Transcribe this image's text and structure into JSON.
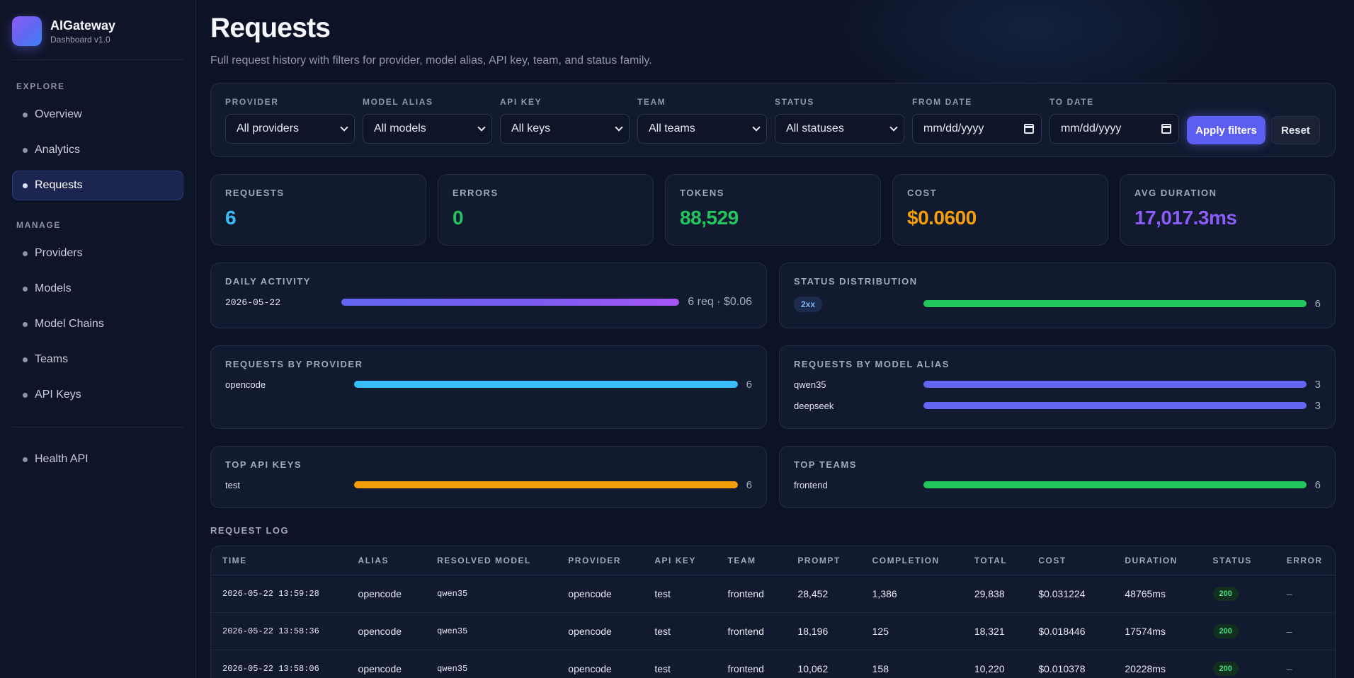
{
  "brand": {
    "name": "AIGateway",
    "subtitle": "Dashboard v1.0"
  },
  "sidebar": {
    "sections": [
      {
        "title": "EXPLORE",
        "items": [
          {
            "label": "Overview",
            "active": false
          },
          {
            "label": "Analytics",
            "active": false
          },
          {
            "label": "Requests",
            "active": true
          }
        ]
      },
      {
        "title": "MANAGE",
        "items": [
          {
            "label": "Providers",
            "active": false
          },
          {
            "label": "Models",
            "active": false
          },
          {
            "label": "Model Chains",
            "active": false
          },
          {
            "label": "Teams",
            "active": false
          },
          {
            "label": "API Keys",
            "active": false
          }
        ]
      }
    ],
    "footer_items": [
      {
        "label": "Health API"
      }
    ]
  },
  "header": {
    "title": "Requests",
    "description": "Full request history with filters for provider, model alias, API key, team, and status family."
  },
  "filters": {
    "fields": [
      {
        "label": "PROVIDER",
        "value": "All providers",
        "type": "select"
      },
      {
        "label": "MODEL ALIAS",
        "value": "All models",
        "type": "select"
      },
      {
        "label": "API KEY",
        "value": "All keys",
        "type": "select"
      },
      {
        "label": "TEAM",
        "value": "All teams",
        "type": "select"
      },
      {
        "label": "STATUS",
        "value": "All statuses",
        "type": "select"
      },
      {
        "label": "FROM DATE",
        "value": "mm/dd/yyyy",
        "type": "date"
      },
      {
        "label": "TO DATE",
        "value": "mm/dd/yyyy",
        "type": "date"
      }
    ],
    "apply_label": "Apply filters",
    "reset_label": "Reset"
  },
  "stats": [
    {
      "label": "REQUESTS",
      "value": "6",
      "color": "#38bdf8"
    },
    {
      "label": "ERRORS",
      "value": "0",
      "color": "#22c55e"
    },
    {
      "label": "TOKENS",
      "value": "88,529",
      "color": "#22c55e"
    },
    {
      "label": "COST",
      "value": "$0.0600",
      "color": "#f59e0b"
    },
    {
      "label": "AVG DURATION",
      "value": "17,017.3ms",
      "color": "#8b5cf6"
    }
  ],
  "panels": {
    "daily_activity": {
      "title": "DAILY ACTIVITY",
      "rows": [
        {
          "label": "2026-05-22",
          "value": "6 req · $0.06",
          "fraction": 1.0
        }
      ]
    },
    "status_distribution": {
      "title": "STATUS DISTRIBUTION",
      "rows": [
        {
          "label": "2xx",
          "value": "6",
          "fraction": 1.0
        }
      ]
    },
    "by_provider": {
      "title": "REQUESTS BY PROVIDER",
      "rows": [
        {
          "label": "opencode",
          "value": "6",
          "fraction": 1.0
        }
      ]
    },
    "by_model_alias": {
      "title": "REQUESTS BY MODEL ALIAS",
      "rows": [
        {
          "label": "qwen35",
          "value": "3",
          "fraction": 1.0
        },
        {
          "label": "deepseek",
          "value": "3",
          "fraction": 1.0
        }
      ]
    },
    "top_api_keys": {
      "title": "TOP API KEYS",
      "rows": [
        {
          "label": "test",
          "value": "6",
          "fraction": 1.0
        }
      ]
    },
    "top_teams": {
      "title": "TOP TEAMS",
      "rows": [
        {
          "label": "frontend",
          "value": "6",
          "fraction": 1.0
        }
      ]
    }
  },
  "colors": {
    "daily": "#7c5cf0",
    "status": "#22c55e",
    "provider": "#38bdf8",
    "model": "#6366f1",
    "keys": "#f59e0b",
    "teams": "#22c55e"
  },
  "request_log": {
    "title": "REQUEST LOG",
    "columns": [
      "TIME",
      "ALIAS",
      "RESOLVED MODEL",
      "PROVIDER",
      "API KEY",
      "TEAM",
      "PROMPT",
      "COMPLETION",
      "TOTAL",
      "COST",
      "DURATION",
      "STATUS",
      "ERROR"
    ],
    "rows": [
      {
        "time": "2026-05-22 13:59:28",
        "alias": "opencode",
        "resolved_model": "qwen35",
        "provider": "opencode",
        "api_key": "test",
        "team": "frontend",
        "prompt": "28,452",
        "completion": "1,386",
        "total": "29,838",
        "cost": "$0.031224",
        "duration": "48765ms",
        "status": "200",
        "error": "–"
      },
      {
        "time": "2026-05-22 13:58:36",
        "alias": "opencode",
        "resolved_model": "qwen35",
        "provider": "opencode",
        "api_key": "test",
        "team": "frontend",
        "prompt": "18,196",
        "completion": "125",
        "total": "18,321",
        "cost": "$0.018446",
        "duration": "17574ms",
        "status": "200",
        "error": "–"
      },
      {
        "time": "2026-05-22 13:58:06",
        "alias": "opencode",
        "resolved_model": "qwen35",
        "provider": "opencode",
        "api_key": "test",
        "team": "frontend",
        "prompt": "10,062",
        "completion": "158",
        "total": "10,220",
        "cost": "$0.010378",
        "duration": "20228ms",
        "status": "200",
        "error": "–"
      }
    ]
  }
}
